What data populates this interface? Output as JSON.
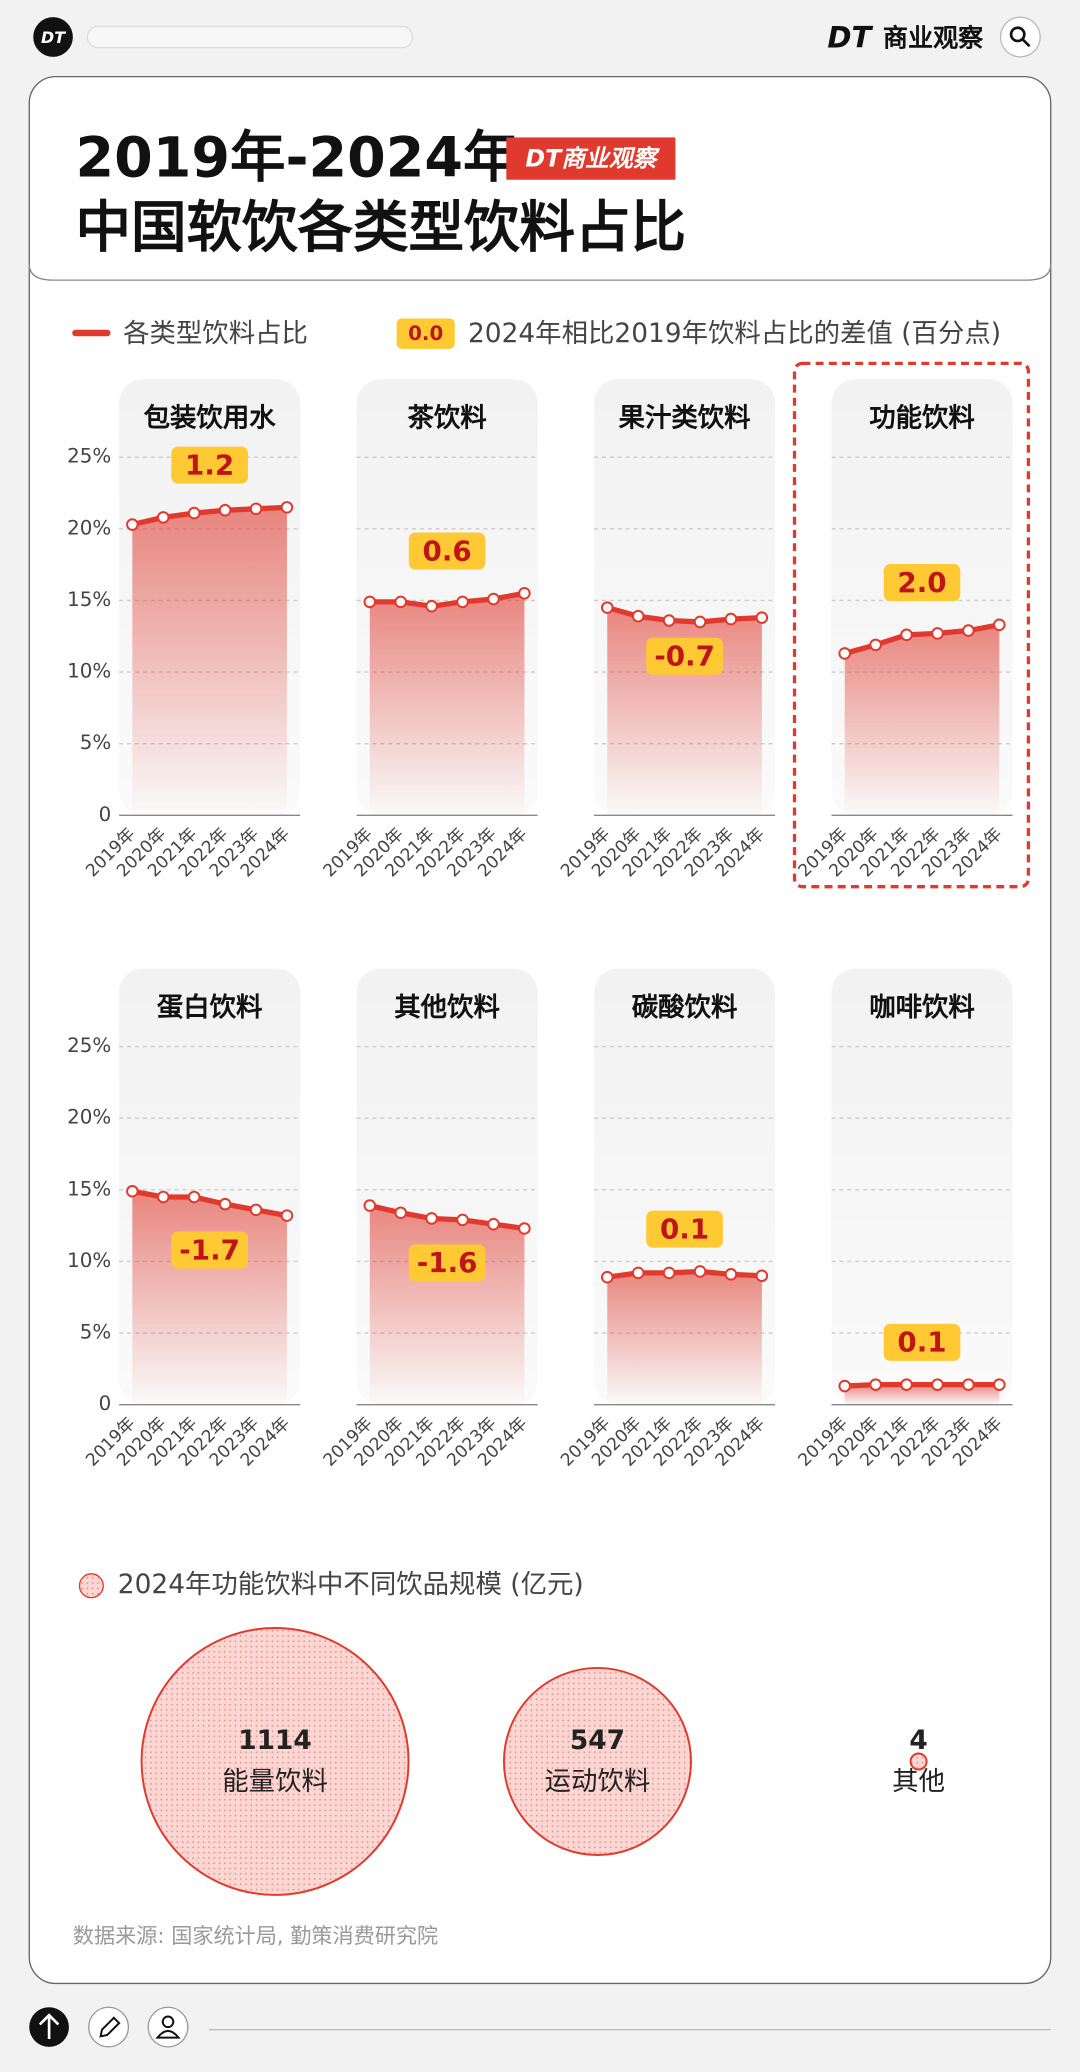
{
  "topbar": {
    "logo": "DT",
    "brand_mark": "DT",
    "brand_name": "商业观察"
  },
  "header": {
    "title_lines": [
      "2019年-2024年",
      "中国软饮各类型饮料占比"
    ],
    "badge": "DT商业观察"
  },
  "legend": {
    "line": "各类型饮料占比",
    "change_sample": "0.0",
    "change": "2024年相比2019年饮料占比的差值 (百分点)"
  },
  "source": "数据来源: 国家统计局, 勤策消费研究院",
  "chart_data": [
    {
      "type": "line",
      "title": "包装饮用水",
      "color": "#e03a2e",
      "categories": [
        "2019年",
        "2020年",
        "2021年",
        "2022年",
        "2023年",
        "2024年"
      ],
      "values": [
        20.3,
        20.8,
        21.1,
        21.3,
        21.4,
        21.5
      ],
      "change": {
        "value": 1.2,
        "label": "1.2"
      },
      "ylim": [
        0,
        25
      ],
      "yticks": [
        0,
        {
          "value": 5,
          "label": "5%"
        },
        {
          "value": 10,
          "label": "10%"
        },
        {
          "value": 15,
          "label": "15%"
        },
        {
          "value": 20,
          "label": "20%"
        },
        {
          "value": 25,
          "label": "25%"
        }
      ],
      "grid": true
    },
    {
      "type": "line",
      "title": "茶饮料",
      "color": "#e03a2e",
      "categories": [
        "2019年",
        "2020年",
        "2021年",
        "2022年",
        "2023年",
        "2024年"
      ],
      "values": [
        14.9,
        14.9,
        14.6,
        14.9,
        15.1,
        15.5
      ],
      "change": {
        "value": 0.6,
        "label": "0.6"
      },
      "ylim": [
        0,
        25
      ],
      "yticks": [
        0,
        {
          "value": 5,
          "label": "5%"
        },
        {
          "value": 10,
          "label": "10%"
        },
        {
          "value": 15,
          "label": "15%"
        },
        {
          "value": 20,
          "label": "20%"
        },
        {
          "value": 25,
          "label": "25%"
        }
      ],
      "grid": true
    },
    {
      "type": "line",
      "title": "果汁类饮料",
      "color": "#e03a2e",
      "categories": [
        "2019年",
        "2020年",
        "2021年",
        "2022年",
        "2023年",
        "2024年"
      ],
      "values": [
        14.5,
        13.9,
        13.6,
        13.5,
        13.7,
        13.8
      ],
      "change": {
        "value": -0.7,
        "label": "-0.7"
      },
      "ylim": [
        0,
        25
      ],
      "yticks": [
        0,
        {
          "value": 5,
          "label": "5%"
        },
        {
          "value": 10,
          "label": "10%"
        },
        {
          "value": 15,
          "label": "15%"
        },
        {
          "value": 20,
          "label": "20%"
        },
        {
          "value": 25,
          "label": "25%"
        }
      ],
      "grid": true
    },
    {
      "type": "line",
      "title": "功能饮料",
      "color": "#e03a2e",
      "highlight": true,
      "categories": [
        "2019年",
        "2020年",
        "2021年",
        "2022年",
        "2023年",
        "2024年"
      ],
      "values": [
        11.3,
        11.9,
        12.6,
        12.7,
        12.9,
        13.3
      ],
      "change": {
        "value": 2,
        "label": "2.0"
      },
      "ylim": [
        0,
        25
      ],
      "yticks": [
        0,
        {
          "value": 5,
          "label": "5%"
        },
        {
          "value": 10,
          "label": "10%"
        },
        {
          "value": 15,
          "label": "15%"
        },
        {
          "value": 20,
          "label": "20%"
        },
        {
          "value": 25,
          "label": "25%"
        }
      ],
      "grid": true
    },
    {
      "type": "line",
      "title": "蛋白饮料",
      "color": "#e03a2e",
      "categories": [
        "2019年",
        "2020年",
        "2021年",
        "2022年",
        "2023年",
        "2024年"
      ],
      "values": [
        14.9,
        14.5,
        14.5,
        14.0,
        13.6,
        13.2
      ],
      "change": {
        "value": -1.7,
        "label": "-1.7"
      },
      "ylim": [
        0,
        25
      ],
      "yticks": [
        0,
        {
          "value": 5,
          "label": "5%"
        },
        {
          "value": 10,
          "label": "10%"
        },
        {
          "value": 15,
          "label": "15%"
        },
        {
          "value": 20,
          "label": "20%"
        },
        {
          "value": 25,
          "label": "25%"
        }
      ],
      "grid": true
    },
    {
      "type": "line",
      "title": "其他饮料",
      "color": "#e03a2e",
      "categories": [
        "2019年",
        "2020年",
        "2021年",
        "2022年",
        "2023年",
        "2024年"
      ],
      "values": [
        13.9,
        13.4,
        13.0,
        12.9,
        12.6,
        12.3
      ],
      "change": {
        "value": -1.6,
        "label": "-1.6"
      },
      "ylim": [
        0,
        25
      ],
      "yticks": [
        0,
        {
          "value": 5,
          "label": "5%"
        },
        {
          "value": 10,
          "label": "10%"
        },
        {
          "value": 15,
          "label": "15%"
        },
        {
          "value": 20,
          "label": "20%"
        },
        {
          "value": 25,
          "label": "25%"
        }
      ],
      "grid": true
    },
    {
      "type": "line",
      "title": "碳酸饮料",
      "color": "#e03a2e",
      "categories": [
        "2019年",
        "2020年",
        "2021年",
        "2022年",
        "2023年",
        "2024年"
      ],
      "values": [
        8.9,
        9.2,
        9.2,
        9.3,
        9.1,
        9.0
      ],
      "change": {
        "value": 0.1,
        "label": "0.1"
      },
      "ylim": [
        0,
        25
      ],
      "yticks": [
        0,
        {
          "value": 5,
          "label": "5%"
        },
        {
          "value": 10,
          "label": "10%"
        },
        {
          "value": 15,
          "label": "15%"
        },
        {
          "value": 20,
          "label": "20%"
        },
        {
          "value": 25,
          "label": "25%"
        }
      ],
      "grid": true
    },
    {
      "type": "line",
      "title": "咖啡饮料",
      "color": "#e03a2e",
      "categories": [
        "2019年",
        "2020年",
        "2021年",
        "2022年",
        "2023年",
        "2024年"
      ],
      "values": [
        1.3,
        1.4,
        1.4,
        1.4,
        1.4,
        1.4
      ],
      "change": {
        "value": 0.1,
        "label": "0.1"
      },
      "ylim": [
        0,
        25
      ],
      "yticks": [
        0,
        {
          "value": 5,
          "label": "5%"
        },
        {
          "value": 10,
          "label": "10%"
        },
        {
          "value": 15,
          "label": "15%"
        },
        {
          "value": 20,
          "label": "20%"
        },
        {
          "value": 25,
          "label": "25%"
        }
      ],
      "grid": true
    },
    {
      "type": "bubble",
      "legend": "2024年功能饮料中不同饮品规模 (亿元)",
      "color": "#e03a2e",
      "categories": [
        "能量饮料",
        "运动饮料",
        "其他"
      ],
      "values": [
        1114,
        547,
        4
      ]
    }
  ]
}
